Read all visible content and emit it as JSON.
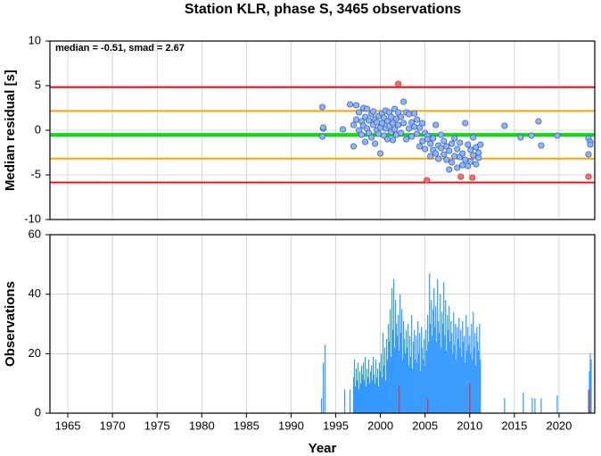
{
  "chart_data": [
    {
      "type": "scatter",
      "title": "Station KLR, phase S, 3465 observations",
      "annotation": "median = -0.51, smad = 2.67",
      "ylabel": "Median residual [s]",
      "xlim": [
        1963,
        2024
      ],
      "ylim": [
        -10,
        10
      ],
      "yticks": [
        -10,
        -5,
        0,
        5,
        10
      ],
      "grid": true,
      "reference_lines": [
        {
          "value": 4.83,
          "color": "#e8141e"
        },
        {
          "value": 2.16,
          "color": "#ffa500"
        },
        {
          "value": -0.51,
          "color": "#00e600"
        },
        {
          "value": -3.18,
          "color": "#ffa500"
        },
        {
          "value": -5.85,
          "color": "#e8141e"
        }
      ],
      "series": [
        {
          "color": "#8fb4f4",
          "x": [
            1993.5,
            1993.5,
            1993.6,
            1993.6,
            1995.8,
            1996.6,
            1997.0,
            1997.0,
            1997.3,
            1997.3,
            1997.6,
            1997.6,
            1997.9,
            1997.9,
            1998.1,
            1998.1,
            1998.3,
            1998.3,
            1998.5,
            1998.5,
            1998.7,
            1998.7,
            1999.0,
            1999.0,
            1999.2,
            1999.2,
            1999.4,
            1999.4,
            1999.6,
            1999.6,
            1999.8,
            1999.8,
            2000.0,
            2000.0,
            2000.2,
            2000.2,
            2000.4,
            2000.4,
            2000.6,
            2000.6,
            2000.8,
            2000.8,
            2001.0,
            2001.0,
            2001.2,
            2001.2,
            2001.4,
            2001.4,
            2001.6,
            2001.6,
            2001.8,
            2001.8,
            2002.0,
            2002.0,
            2002.3,
            2002.3,
            2002.6,
            2002.6,
            2002.9,
            2002.9,
            2003.2,
            2003.2,
            2003.5,
            2003.5,
            2003.8,
            2003.8,
            2004.1,
            2004.1,
            2004.4,
            2004.4,
            2004.7,
            2004.7,
            2005.0,
            2005.0,
            2005.3,
            2005.3,
            2005.6,
            2005.6,
            2005.9,
            2005.9,
            2006.2,
            2006.2,
            2006.5,
            2006.5,
            2006.8,
            2006.8,
            2007.1,
            2007.1,
            2007.4,
            2007.4,
            2007.7,
            2007.7,
            2008.0,
            2008.0,
            2008.3,
            2008.3,
            2008.6,
            2008.6,
            2008.9,
            2008.9,
            2009.2,
            2009.2,
            2009.5,
            2009.5,
            2009.8,
            2009.8,
            2010.1,
            2010.1,
            2010.4,
            2010.4,
            2010.7,
            2010.7,
            2011.0,
            2011.0,
            2011.2,
            2013.9,
            2015.7,
            2016.9,
            2017.7,
            2018.0,
            2019.8,
            2023.3,
            2023.3,
            2023.5,
            2023.5
          ],
          "values": [
            2.6,
            -0.7,
            0.2,
            0.3,
            0.1,
            2.9,
            -1.8,
            0.6,
            2.8,
            1.2,
            0.0,
            2.0,
            1.0,
            -0.5,
            2.5,
            0.5,
            1.5,
            -1.3,
            2.4,
            0.2,
            -0.3,
            1.1,
            1.8,
            -0.8,
            0.6,
            2.1,
            -1.5,
            1.2,
            0.0,
            0.9,
            1.6,
            -0.4,
            -2.6,
            0.3,
            1.9,
            0.8,
            -0.6,
            1.4,
            0.2,
            2.2,
            -1.0,
            1.0,
            0.5,
            2.0,
            -0.2,
            1.5,
            0.8,
            -1.1,
            2.4,
            0.1,
            1.3,
            -0.5,
            0.6,
            2.0,
            1.5,
            -0.3,
            3.2,
            0.8,
            2.0,
            -1.0,
            1.8,
            0.2,
            0.9,
            -0.7,
            1.9,
            0.4,
            1.2,
            -0.4,
            0.3,
            -1.8,
            0.8,
            -1.2,
            -0.3,
            -2.1,
            -0.6,
            -1.0,
            -2.9,
            -1.5,
            -0.9,
            -2.2,
            0.6,
            -2.6,
            -1.7,
            -3.2,
            -0.5,
            -2.0,
            -2.7,
            -1.2,
            -3.3,
            -1.8,
            -4.4,
            -2.3,
            -1.5,
            -3.6,
            -2.9,
            -0.9,
            -4.2,
            -2.1,
            -3.0,
            -1.4,
            -3.9,
            -2.6,
            0.8,
            -3.3,
            -1.6,
            -4.0,
            -2.2,
            -3.5,
            -0.8,
            -2.8,
            -3.8,
            -1.9,
            -2.5,
            -3.1,
            -1.6,
            0.5,
            -0.8,
            -0.6,
            1.0,
            -1.7,
            -0.6,
            -0.9,
            -2.7,
            -1.3,
            -1.6
          ]
        },
        {
          "color": "#f07070",
          "x": [
            2002.0,
            2005.2,
            2009.0,
            2010.3,
            2023.3
          ],
          "values": [
            5.2,
            -5.6,
            -5.2,
            -5.3,
            -5.2
          ]
        }
      ]
    },
    {
      "type": "bar",
      "ylabel": "Observations",
      "xlabel": "Year",
      "xlim": [
        1963,
        2024
      ],
      "ylim": [
        0,
        60
      ],
      "yticks": [
        0,
        20,
        40,
        60
      ],
      "xticks": [
        1965,
        1970,
        1975,
        1980,
        1985,
        1990,
        1995,
        2000,
        2005,
        2010,
        2015,
        2020
      ],
      "grid": true,
      "series": [
        {
          "color": "#3399ff",
          "x": [
            1993.4,
            1993.6,
            1993.8,
            1996.0,
            1996.6,
            1997.0,
            1997.1,
            1997.2,
            1997.3,
            1997.4,
            1997.5,
            1997.6,
            1997.7,
            1997.8,
            1997.9,
            1998.0,
            1998.1,
            1998.2,
            1998.3,
            1998.4,
            1998.5,
            1998.6,
            1998.7,
            1998.8,
            1998.9,
            1999.0,
            1999.1,
            1999.2,
            1999.3,
            1999.4,
            1999.5,
            1999.6,
            1999.7,
            1999.8,
            1999.9,
            2000.0,
            2000.1,
            2000.2,
            2000.3,
            2000.4,
            2000.5,
            2000.6,
            2000.7,
            2000.8,
            2000.9,
            2001.0,
            2001.1,
            2001.2,
            2001.3,
            2001.4,
            2001.5,
            2001.6,
            2001.7,
            2001.8,
            2001.9,
            2002.0,
            2002.1,
            2002.2,
            2002.3,
            2002.4,
            2002.5,
            2002.6,
            2002.7,
            2002.8,
            2002.9,
            2003.0,
            2003.1,
            2003.2,
            2003.3,
            2003.4,
            2003.5,
            2003.6,
            2003.7,
            2003.8,
            2003.9,
            2004.0,
            2004.1,
            2004.2,
            2004.3,
            2004.4,
            2004.5,
            2004.6,
            2004.7,
            2004.8,
            2004.9,
            2005.0,
            2005.1,
            2005.2,
            2005.3,
            2005.4,
            2005.5,
            2005.6,
            2005.7,
            2005.8,
            2005.9,
            2006.0,
            2006.1,
            2006.2,
            2006.3,
            2006.4,
            2006.5,
            2006.6,
            2006.7,
            2006.8,
            2006.9,
            2007.0,
            2007.1,
            2007.2,
            2007.3,
            2007.4,
            2007.5,
            2007.6,
            2007.7,
            2007.8,
            2007.9,
            2008.0,
            2008.1,
            2008.2,
            2008.3,
            2008.4,
            2008.5,
            2008.6,
            2008.7,
            2008.8,
            2008.9,
            2009.0,
            2009.1,
            2009.2,
            2009.3,
            2009.4,
            2009.5,
            2009.6,
            2009.7,
            2009.8,
            2009.9,
            2010.0,
            2010.1,
            2010.2,
            2010.3,
            2010.4,
            2010.5,
            2010.6,
            2010.7,
            2010.8,
            2010.9,
            2011.0,
            2011.1,
            2011.2,
            2013.9,
            2016.0,
            2017.0,
            2017.3,
            2018.0,
            2019.8,
            2023.3,
            2023.4,
            2023.5,
            2023.6
          ],
          "values": [
            5,
            17,
            23,
            8,
            8,
            12,
            18,
            9,
            15,
            11,
            17,
            8,
            14,
            10,
            16,
            13,
            17,
            11,
            19,
            9,
            15,
            12,
            18,
            10,
            14,
            16,
            11,
            19,
            13,
            10,
            18,
            12,
            15,
            9,
            17,
            14,
            20,
            12,
            27,
            16,
            22,
            11,
            25,
            18,
            30,
            24,
            35,
            19,
            42,
            28,
            45,
            22,
            38,
            30,
            26,
            33,
            21,
            40,
            27,
            35,
            18,
            31,
            25,
            20,
            28,
            22,
            30,
            16,
            26,
            19,
            33,
            15,
            24,
            28,
            18,
            26,
            17,
            31,
            20,
            27,
            14,
            29,
            22,
            18,
            25,
            16,
            28,
            21,
            33,
            24,
            47,
            30,
            38,
            26,
            35,
            42,
            29,
            36,
            24,
            45,
            31,
            27,
            40,
            22,
            34,
            30,
            44,
            26,
            38,
            21,
            33,
            28,
            36,
            24,
            31,
            27,
            20,
            34,
            23,
            30,
            18,
            29,
            25,
            32,
            22,
            28,
            19,
            31,
            24,
            26,
            17,
            33,
            21,
            29,
            23,
            26,
            20,
            30,
            18,
            34,
            22,
            27,
            16,
            29,
            24,
            21,
            30,
            18,
            5,
            7,
            5,
            5,
            5,
            6,
            8,
            14,
            20,
            18
          ]
        },
        {
          "color": "#e03030",
          "x": [
            2002.1,
            2005.3,
            2010.0,
            2023.4
          ],
          "values": [
            9,
            5,
            10,
            8
          ]
        }
      ]
    }
  ]
}
